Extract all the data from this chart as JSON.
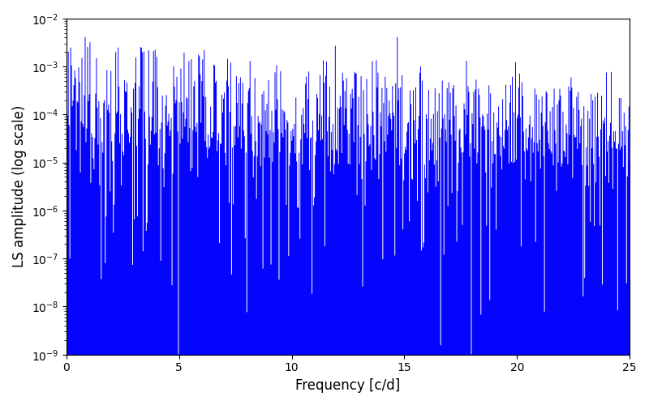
{
  "title": "",
  "xlabel": "Frequency [c/d]",
  "ylabel": "LS amplitude (log scale)",
  "xlim": [
    0,
    25
  ],
  "ylim": [
    1e-09,
    0.01
  ],
  "line_color": "#0000ff",
  "line_width": 0.7,
  "yscale": "log",
  "figsize": [
    8.0,
    5.0
  ],
  "dpi": 100,
  "n_frequencies": 700,
  "seed": 12345
}
